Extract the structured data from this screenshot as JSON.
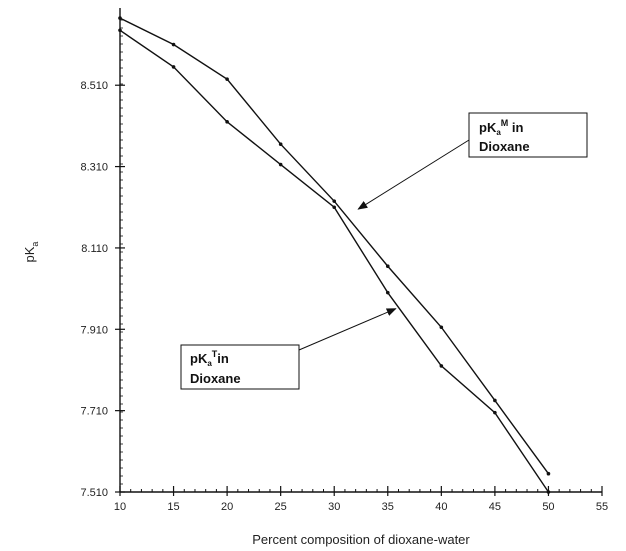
{
  "chart_data": {
    "type": "line",
    "xlabel": "Percent composition of dioxane-water",
    "ylabel": {
      "base": "pK",
      "sub": "a"
    },
    "xlim": [
      10,
      55
    ],
    "ylim": [
      7.51,
      8.69
    ],
    "x_ticks": [
      10,
      15,
      20,
      25,
      30,
      35,
      40,
      45,
      50,
      55
    ],
    "y_ticks": [
      "7.510",
      "7.710",
      "7.910",
      "8.110",
      "8.310",
      "8.510"
    ],
    "grid": false,
    "series": [
      {
        "name": {
          "base": "pK",
          "sub": "a",
          "sup": "M",
          "rest": " in",
          "line2": "Dioxane"
        },
        "x": [
          10,
          15,
          20,
          25,
          30,
          35,
          40,
          45,
          50
        ],
        "y": [
          8.675,
          8.61,
          8.525,
          8.365,
          8.225,
          8.065,
          7.915,
          7.735,
          7.555
        ]
      },
      {
        "name": {
          "base": "pK",
          "sub": "a",
          "sup": "T",
          "rest": "in",
          "line2": "Dioxane"
        },
        "x": [
          10,
          15,
          20,
          25,
          30,
          35,
          40,
          45,
          50
        ],
        "y": [
          8.645,
          8.555,
          8.42,
          8.315,
          8.21,
          8.0,
          7.82,
          7.705,
          7.51
        ]
      }
    ],
    "annotations": [
      {
        "series": 0,
        "placement": "right, upper"
      },
      {
        "series": 1,
        "placement": "center, lower"
      }
    ]
  }
}
